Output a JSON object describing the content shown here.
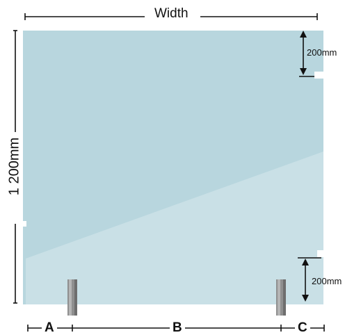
{
  "width_label": "Width",
  "height_label": "1 200mm",
  "top_gap_label": "200mm",
  "bottom_gap_label": "200mm",
  "segment_labels": {
    "a": "A",
    "b": "B",
    "c": "C"
  },
  "colors": {
    "glass": "#b8d6de",
    "glass_lower": "#c9e0e6",
    "post": "#8c8c8c",
    "line": "#111111"
  }
}
